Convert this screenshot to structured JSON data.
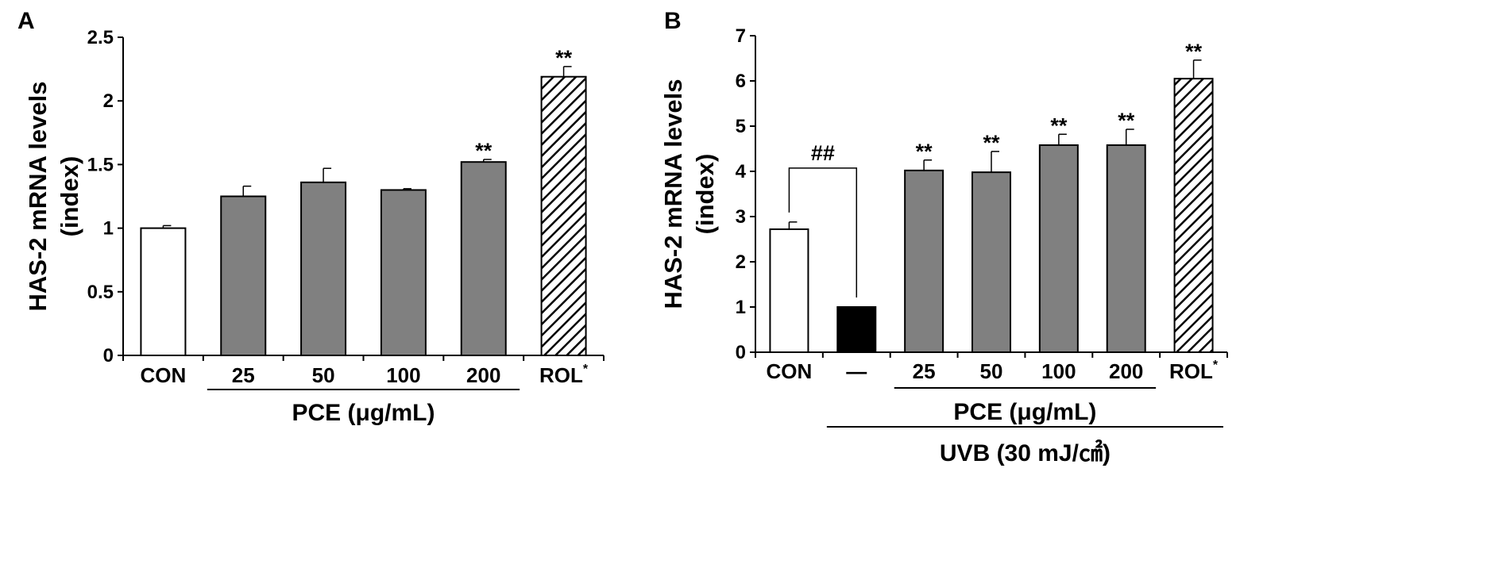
{
  "chart_data": [
    {
      "type": "bar",
      "panel_label": "A",
      "title": "",
      "ylabel": [
        "HAS-2 mRNA levels",
        "(index)"
      ],
      "ylim": [
        0,
        2.5
      ],
      "yticks": [
        0,
        0.5,
        1,
        1.5,
        2,
        2.5
      ],
      "ytick_labels": [
        "0",
        "0.5",
        "1",
        "1.5",
        "2",
        "2.5"
      ],
      "categories": [
        "CON",
        "25",
        "50",
        "100",
        "200",
        "ROL"
      ],
      "category_superscripts": [
        "",
        "",
        "",
        "",
        "",
        "*"
      ],
      "values": [
        1.0,
        1.25,
        1.36,
        1.3,
        1.52,
        2.19
      ],
      "errors": [
        0.02,
        0.08,
        0.11,
        0.01,
        0.02,
        0.08
      ],
      "significance": [
        "",
        "",
        "",
        "",
        "**",
        "**"
      ],
      "bar_styles": [
        "white",
        "gray",
        "gray",
        "gray",
        "gray",
        "hatched"
      ],
      "group_labels": [
        {
          "text": "PCE (μg/mL)",
          "from": 1,
          "to": 4
        }
      ],
      "bracket": null
    },
    {
      "type": "bar",
      "panel_label": "B",
      "title": "",
      "ylabel": [
        "HAS-2 mRNA levels",
        "(index)"
      ],
      "ylim": [
        0,
        7
      ],
      "yticks": [
        0,
        1,
        2,
        3,
        4,
        5,
        6,
        7
      ],
      "ytick_labels": [
        "0",
        "1",
        "2",
        "3",
        "4",
        "5",
        "6",
        "7"
      ],
      "categories": [
        "CON",
        "—",
        "25",
        "50",
        "100",
        "200",
        "ROL"
      ],
      "category_superscripts": [
        "",
        "",
        "",
        "",
        "",
        "",
        "*"
      ],
      "values": [
        2.72,
        1.0,
        4.02,
        3.98,
        4.58,
        4.58,
        6.05
      ],
      "errors": [
        0.16,
        0.0,
        0.23,
        0.46,
        0.24,
        0.35,
        0.41
      ],
      "significance": [
        "",
        "",
        "**",
        "**",
        "**",
        "**",
        "**"
      ],
      "bar_styles": [
        "white",
        "black",
        "gray",
        "gray",
        "gray",
        "gray",
        "hatched"
      ],
      "group_labels": [
        {
          "text": "PCE (μg/mL)",
          "from": 2,
          "to": 5
        },
        {
          "text": "UVB (30 mJ/㎠)",
          "from": 1,
          "to": 6
        }
      ],
      "bracket": {
        "from": 0,
        "to": 1,
        "label": "##"
      }
    }
  ],
  "colors": {
    "gray_bar": "#808080",
    "black_bar": "#000000",
    "white_bar": "#ffffff",
    "axis": "#000000"
  }
}
